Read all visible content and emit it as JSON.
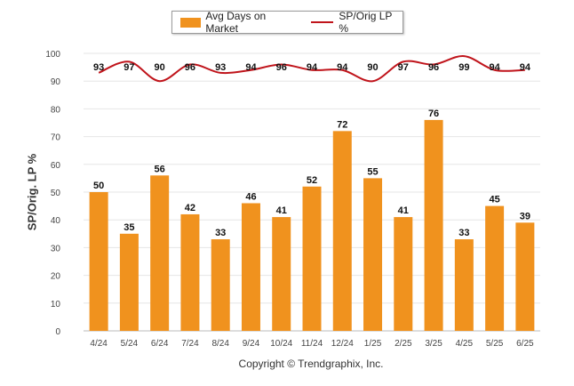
{
  "chart_data": {
    "type": "bar",
    "title": "",
    "ylabel": "SP/Orig. LP %",
    "xlabel": "",
    "ylim": [
      0,
      100
    ],
    "yticks": [
      0,
      10,
      20,
      30,
      40,
      50,
      60,
      70,
      80,
      90,
      100
    ],
    "grid": "horizontal",
    "legend_position": "top-center",
    "categories": [
      "4/24",
      "5/24",
      "6/24",
      "7/24",
      "8/24",
      "9/24",
      "10/24",
      "11/24",
      "12/24",
      "1/25",
      "2/25",
      "3/25",
      "4/25",
      "5/25",
      "6/25"
    ],
    "series": [
      {
        "name": "Avg Days on Market",
        "type": "bar",
        "color": "#f0921e",
        "values": [
          50,
          35,
          56,
          42,
          33,
          46,
          41,
          52,
          72,
          55,
          41,
          76,
          33,
          45,
          39
        ]
      },
      {
        "name": "SP/Orig LP %",
        "type": "line",
        "color": "#c0141b",
        "values": [
          93,
          97,
          90,
          96,
          93,
          94,
          96,
          94,
          94,
          90,
          97,
          96,
          99,
          94,
          94
        ]
      }
    ]
  },
  "footer": {
    "copyright": "Copyright © Trendgraphix, Inc."
  }
}
